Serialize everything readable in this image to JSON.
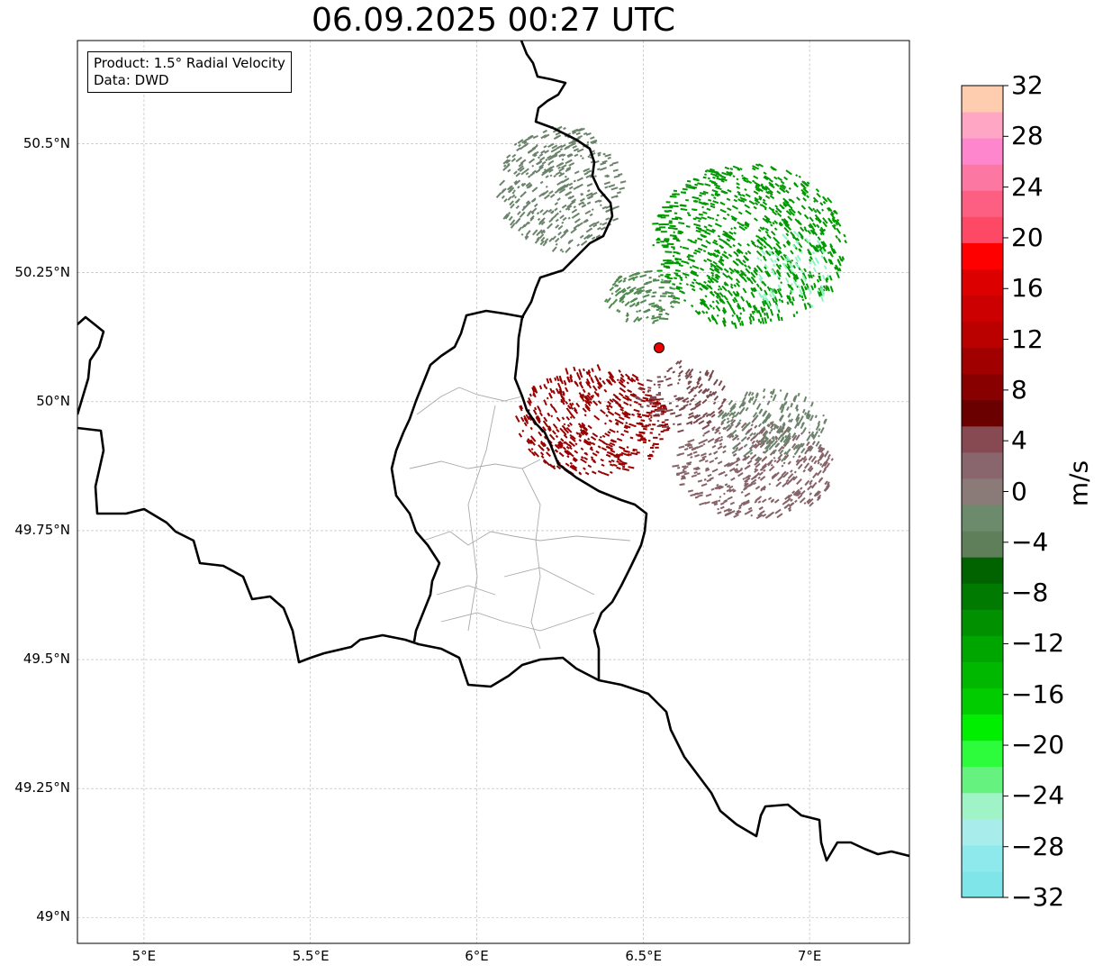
{
  "title": "06.09.2025 00:27 UTC",
  "info": {
    "product": "Product: 1.5° Radial Velocity",
    "data": "Data: DWD"
  },
  "axes": {
    "lon_ticks": [
      "5°E",
      "5.5°E",
      "6°E",
      "6.5°E",
      "7°E"
    ],
    "lat_ticks": [
      "50.5°N",
      "50.25°N",
      "50°N",
      "49.75°N",
      "49.5°N",
      "49.25°N",
      "49°N"
    ],
    "lon_range": [
      4.8,
      7.3
    ],
    "lat_range": [
      48.95,
      50.7
    ]
  },
  "radar_site": {
    "lon": 6.55,
    "lat": 50.11
  },
  "colorbar": {
    "unit": "m/s",
    "range": [
      -32,
      32
    ],
    "tick_labels": [
      "32",
      "28",
      "24",
      "20",
      "16",
      "12",
      "8",
      "4",
      "0",
      "−4",
      "−8",
      "−12",
      "−16",
      "−20",
      "−24",
      "−28",
      "−32"
    ],
    "colors": [
      "#7fe5e8",
      "#8ee9ec",
      "#a8ecec",
      "#9ff3c6",
      "#66f27f",
      "#2cfc3c",
      "#00ee00",
      "#00cc00",
      "#00b800",
      "#00a600",
      "#009000",
      "#007a00",
      "#006300",
      "#5f7f5a",
      "#6c8a6c",
      "#8a7a78",
      "#89666e",
      "#874a52",
      "#6a0000",
      "#880000",
      "#a10000",
      "#bb0000",
      "#cc0000",
      "#dd0000",
      "#fe0000",
      "#fd4966",
      "#fd5f82",
      "#fc78a3",
      "#fe86cd",
      "#fea6c3",
      "#fecdb0"
    ]
  },
  "colors": {
    "inbound": "#009900",
    "outbound": "#990000",
    "near_zero": "#6b836b",
    "slow_out": "#866368"
  }
}
